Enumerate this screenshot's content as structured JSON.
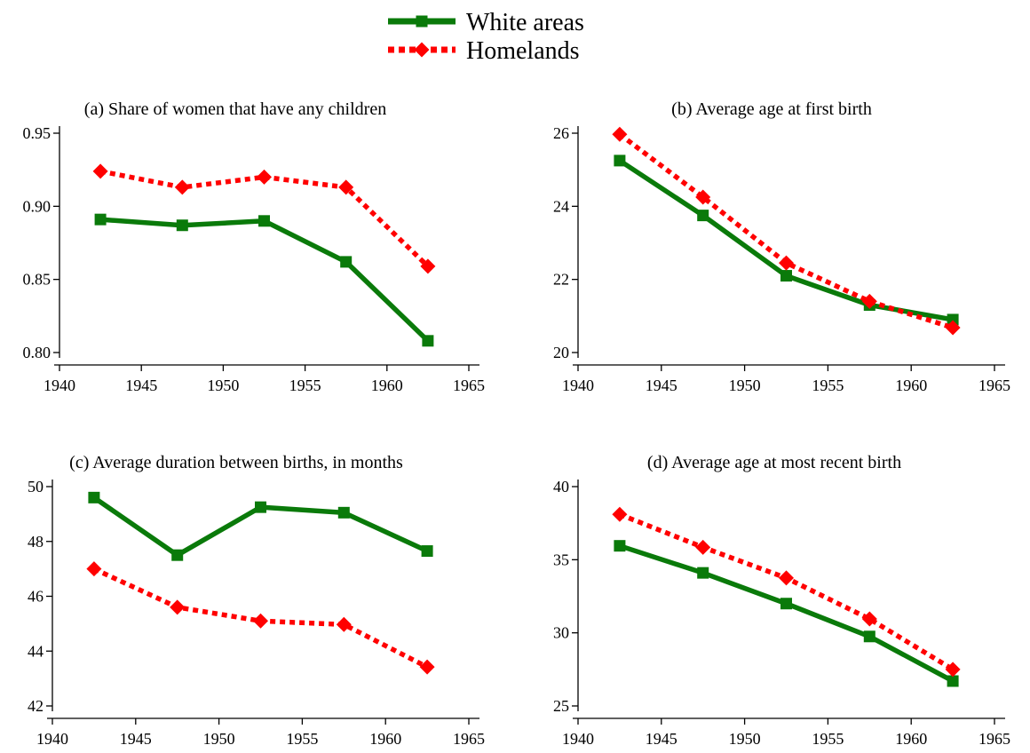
{
  "colors": {
    "white_areas": "#0a7a0a",
    "homelands": "#ff0000"
  },
  "legend": [
    {
      "name": "White areas",
      "color": "#0a7a0a",
      "marker": "square",
      "dash": "solid"
    },
    {
      "name": "Homelands",
      "color": "#ff0000",
      "marker": "diamond",
      "dash": "dotted"
    }
  ],
  "chart_data": [
    {
      "type": "line",
      "title": "(a) Share of women that have any children",
      "xlabel": "",
      "ylabel": "",
      "xlim": [
        1940,
        1965
      ],
      "ylim": [
        0.8,
        0.95
      ],
      "xticks": [
        1940,
        1945,
        1950,
        1955,
        1960,
        1965
      ],
      "yticks": [
        0.8,
        0.85,
        0.9,
        0.95
      ],
      "ytick_labels": [
        "0.80",
        "0.85",
        "0.90",
        "0.95"
      ],
      "x": [
        1942.5,
        1947.5,
        1952.5,
        1957.5,
        1962.5
      ],
      "series": [
        {
          "name": "White areas",
          "values": [
            0.891,
            0.887,
            0.89,
            0.862,
            0.808
          ]
        },
        {
          "name": "Homelands",
          "values": [
            0.924,
            0.913,
            0.92,
            0.913,
            0.859
          ]
        }
      ]
    },
    {
      "type": "line",
      "title": "(b) Average age at first birth",
      "xlabel": "",
      "ylabel": "",
      "xlim": [
        1940,
        1965
      ],
      "ylim": [
        20,
        26
      ],
      "xticks": [
        1940,
        1945,
        1950,
        1955,
        1960,
        1965
      ],
      "yticks": [
        20,
        22,
        24,
        26
      ],
      "ytick_labels": [
        "20",
        "22",
        "24",
        "26"
      ],
      "x": [
        1942.5,
        1947.5,
        1952.5,
        1957.5,
        1962.5
      ],
      "series": [
        {
          "name": "White areas",
          "values": [
            25.25,
            23.75,
            22.1,
            21.3,
            20.9
          ]
        },
        {
          "name": "Homelands",
          "values": [
            25.97,
            24.25,
            22.45,
            21.4,
            20.68
          ]
        }
      ]
    },
    {
      "type": "line",
      "title": "(c) Average duration between births, in months",
      "xlabel": "",
      "ylabel": "",
      "xlim": [
        1940,
        1965
      ],
      "ylim": [
        42,
        50
      ],
      "xticks": [
        1940,
        1945,
        1950,
        1955,
        1960,
        1965
      ],
      "yticks": [
        42,
        44,
        46,
        48,
        50
      ],
      "ytick_labels": [
        "42",
        "44",
        "46",
        "48",
        "50"
      ],
      "x": [
        1942.5,
        1947.5,
        1952.5,
        1957.5,
        1962.5
      ],
      "series": [
        {
          "name": "White areas",
          "values": [
            49.6,
            47.5,
            49.25,
            49.05,
            47.65
          ]
        },
        {
          "name": "Homelands",
          "values": [
            47.0,
            45.6,
            45.1,
            44.97,
            43.42
          ]
        }
      ]
    },
    {
      "type": "line",
      "title": "(d) Average age at most recent birth",
      "xlabel": "",
      "ylabel": "",
      "xlim": [
        1940,
        1965
      ],
      "ylim": [
        25,
        40
      ],
      "xticks": [
        1940,
        1945,
        1950,
        1955,
        1960,
        1965
      ],
      "yticks": [
        25,
        30,
        35,
        40
      ],
      "ytick_labels": [
        "25",
        "30",
        "35",
        "40"
      ],
      "x": [
        1942.5,
        1947.5,
        1952.5,
        1957.5,
        1962.5
      ],
      "series": [
        {
          "name": "White areas",
          "values": [
            35.95,
            34.1,
            32.0,
            29.75,
            26.7
          ]
        },
        {
          "name": "Homelands",
          "values": [
            38.1,
            35.85,
            33.75,
            30.95,
            27.5
          ]
        }
      ]
    }
  ]
}
